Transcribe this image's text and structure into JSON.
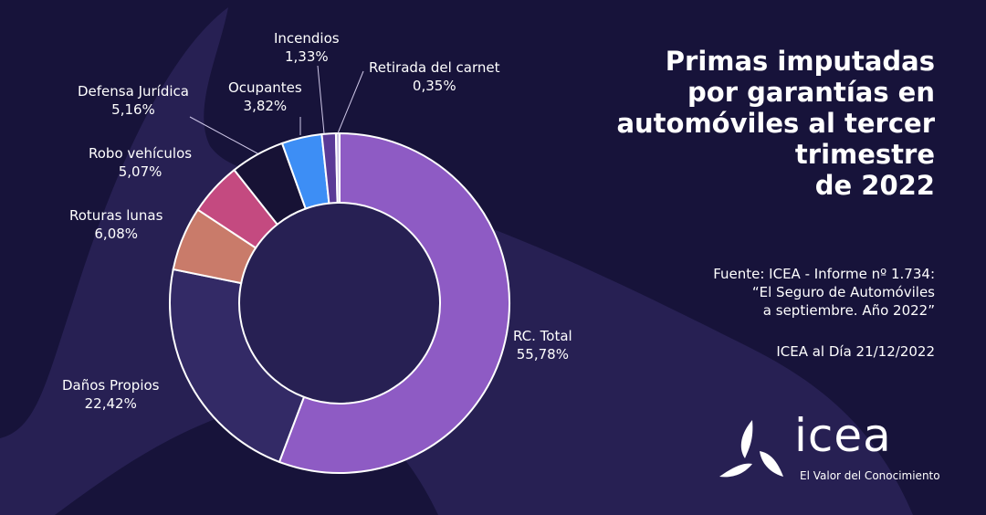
{
  "title": "Primas imputadas por garantías en automóviles al tercer trimestre de 2022",
  "title_lines": [
    "Primas imputadas",
    "por garantías en",
    "automóviles al tercer",
    "trimestre",
    "de 2022"
  ],
  "source": {
    "lines": [
      "Fuente: ICEA - Informe nº 1.734:",
      "“El Seguro de Automóviles",
      "a septiembre. Año 2022”"
    ],
    "date": "ICEA al Día 21/12/2022"
  },
  "logo": {
    "word": "icea",
    "tagline": "El Valor del Conocimiento"
  },
  "colors": {
    "background": "#17133a",
    "decor": "#2a2358"
  },
  "chart_data": {
    "type": "pie",
    "donut": true,
    "start": "top",
    "direction": "clockwise",
    "unit": "%",
    "slices": [
      {
        "label": "RC. Total",
        "value": 55.78,
        "display": "55,78%",
        "color": "#8e5bc4"
      },
      {
        "label": "Daños Propios",
        "value": 22.42,
        "display": "22,42%",
        "color": "#332a66"
      },
      {
        "label": "Roturas lunas",
        "value": 6.08,
        "display": "6,08%",
        "color": "#c97b6a"
      },
      {
        "label": "Robo vehículos",
        "value": 5.07,
        "display": "5,07%",
        "color": "#c44a80"
      },
      {
        "label": "Defensa  Jurídica",
        "value": 5.16,
        "display": "5,16%",
        "color": "#171235"
      },
      {
        "label": "Ocupantes",
        "value": 3.82,
        "display": "3,82%",
        "color": "#3d8ef5"
      },
      {
        "label": "Incendios",
        "value": 1.33,
        "display": "1,33%",
        "color": "#5a3a96"
      },
      {
        "label": "Retirada del carnet",
        "value": 0.35,
        "display": "0,35%",
        "color": "#c8c0e0"
      }
    ]
  }
}
